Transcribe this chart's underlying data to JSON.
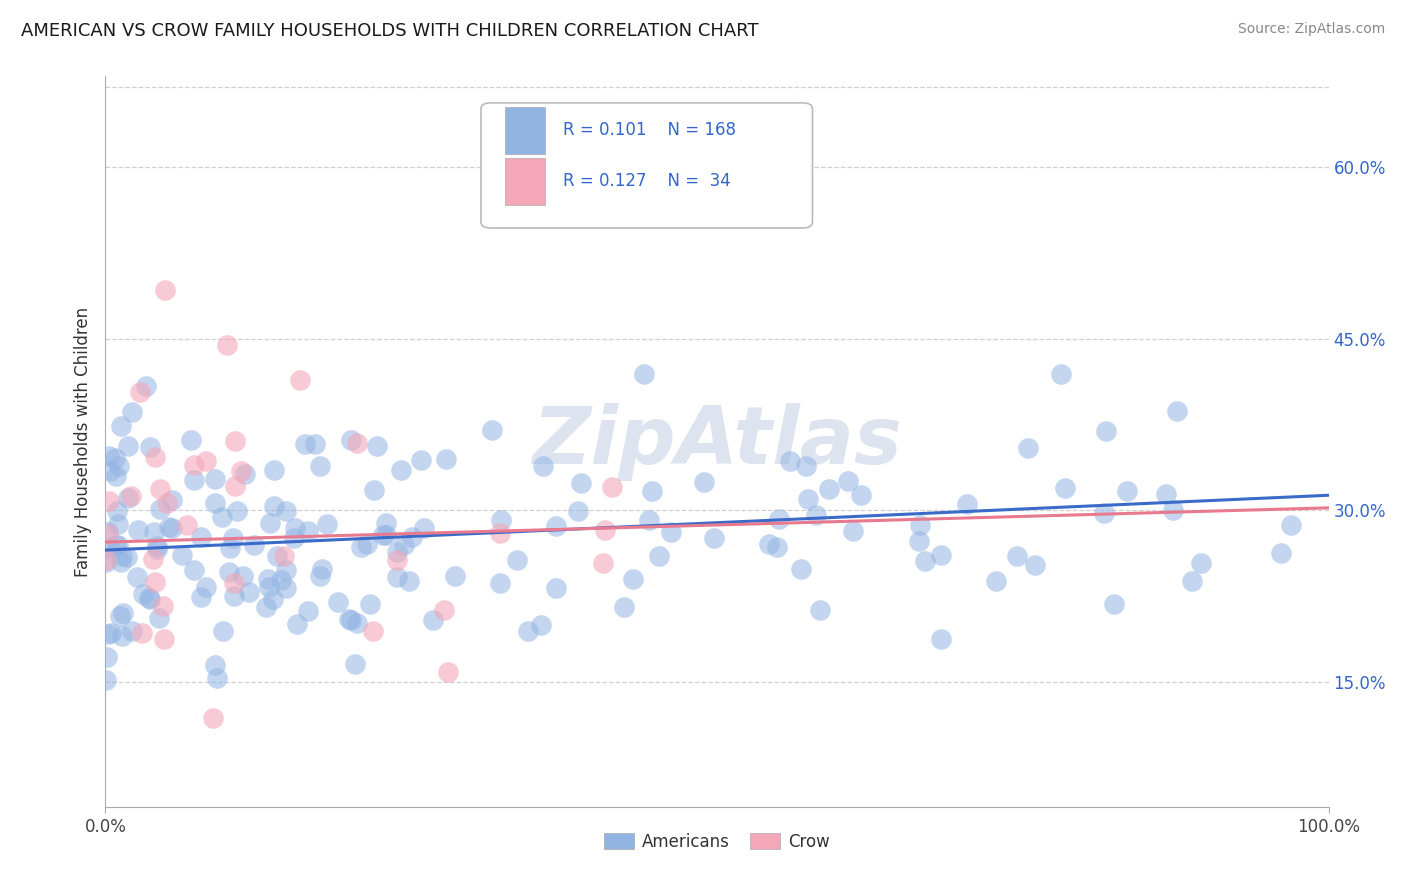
{
  "title": "AMERICAN VS CROW FAMILY HOUSEHOLDS WITH CHILDREN CORRELATION CHART",
  "source": "Source: ZipAtlas.com",
  "ylabel": "Family Households with Children",
  "y_tick_values": [
    0.15,
    0.3,
    0.45,
    0.6
  ],
  "xlim": [
    0.0,
    1.0
  ],
  "ylim": [
    0.04,
    0.68
  ],
  "legend_label1": "Americans",
  "legend_label2": "Crow",
  "legend_R1": "0.101",
  "legend_N1": "168",
  "legend_R2": "0.127",
  "legend_N2": " 34",
  "color_american": "#92b4e3",
  "color_crow": "#f4a7b9",
  "color_blue_text": "#3366cc",
  "color_line_am": "#3b6bc9",
  "color_line_crow": "#e87a90",
  "background_color": "#ffffff",
  "grid_color": "#d0d0d0",
  "watermark_text": "ZipAtlas",
  "watermark_color": "#dde4f0",
  "am_seed": 123,
  "crow_seed": 99
}
